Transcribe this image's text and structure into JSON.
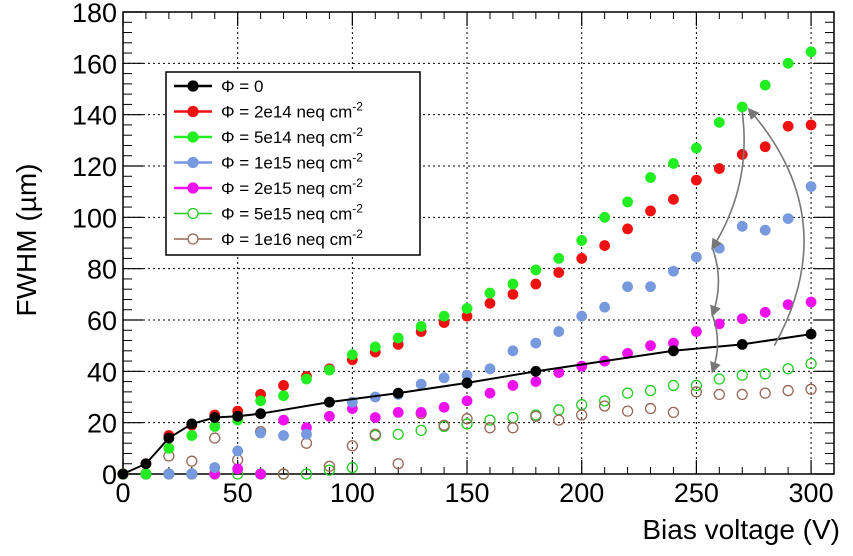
{
  "chart_data": {
    "type": "scatter",
    "title": "",
    "xlabel": "Bias voltage (V)",
    "ylabel": "FWHM (µm)",
    "xlim": [
      0,
      310
    ],
    "ylim": [
      0,
      180
    ],
    "x_ticks": [
      "0",
      "50",
      "100",
      "150",
      "200",
      "250",
      "300"
    ],
    "y_ticks": [
      "0",
      "20",
      "40",
      "60",
      "80",
      "100",
      "120",
      "140",
      "160",
      "180"
    ],
    "grid": true,
    "legend_position": "top-left",
    "series": [
      {
        "name": "Φ = 0",
        "color": "#000000",
        "marker": "filled-circle",
        "line": true,
        "points": [
          [
            0,
            0
          ],
          [
            10,
            4
          ],
          [
            20,
            14
          ],
          [
            30,
            19.5
          ],
          [
            40,
            22
          ],
          [
            50,
            22.5
          ],
          [
            60,
            23.5
          ],
          [
            90,
            28
          ],
          [
            120,
            31.5
          ],
          [
            150,
            35.5
          ],
          [
            180,
            40
          ],
          [
            240,
            48
          ],
          [
            270,
            50.5
          ],
          [
            300,
            54.5
          ]
        ]
      },
      {
        "name": "Φ = 2e14 neq cm",
        "color": "#ee1111",
        "marker": "filled-circle",
        "line": false,
        "points": [
          [
            0,
            0
          ],
          [
            10,
            4
          ],
          [
            20,
            15
          ],
          [
            30,
            19
          ],
          [
            40,
            23
          ],
          [
            50,
            24.5
          ],
          [
            60,
            31
          ],
          [
            70,
            34.5
          ],
          [
            80,
            38
          ],
          [
            90,
            41
          ],
          [
            100,
            44.5
          ],
          [
            110,
            47.5
          ],
          [
            120,
            50.5
          ],
          [
            130,
            55.5
          ],
          [
            140,
            59
          ],
          [
            150,
            61.5
          ],
          [
            160,
            66.5
          ],
          [
            170,
            70
          ],
          [
            180,
            74
          ],
          [
            190,
            78.5
          ],
          [
            200,
            84
          ],
          [
            210,
            89
          ],
          [
            220,
            95.5
          ],
          [
            230,
            102.5
          ],
          [
            240,
            107
          ],
          [
            250,
            114.5
          ],
          [
            260,
            119
          ],
          [
            270,
            124.5
          ],
          [
            280,
            127.5
          ],
          [
            290,
            135.5
          ],
          [
            300,
            136
          ]
        ]
      },
      {
        "name": "Φ = 5e14 neq cm",
        "color": "#22ee22",
        "marker": "filled-circle",
        "line": false,
        "points": [
          [
            0,
            0
          ],
          [
            10,
            0
          ],
          [
            20,
            10
          ],
          [
            30,
            15
          ],
          [
            40,
            18.5
          ],
          [
            50,
            21
          ],
          [
            60,
            28.5
          ],
          [
            70,
            30.5
          ],
          [
            80,
            37
          ],
          [
            90,
            40.5
          ],
          [
            100,
            46.5
          ],
          [
            110,
            49.5
          ],
          [
            120,
            53
          ],
          [
            130,
            57.5
          ],
          [
            140,
            61.5
          ],
          [
            150,
            64.5
          ],
          [
            160,
            70.5
          ],
          [
            170,
            74
          ],
          [
            180,
            79.5
          ],
          [
            190,
            84
          ],
          [
            200,
            91
          ],
          [
            210,
            100
          ],
          [
            220,
            106
          ],
          [
            230,
            115.5
          ],
          [
            240,
            121
          ],
          [
            250,
            127
          ],
          [
            260,
            137
          ],
          [
            270,
            143
          ],
          [
            280,
            151.5
          ],
          [
            290,
            160
          ],
          [
            300,
            164.5
          ]
        ]
      },
      {
        "name": "Φ = 1e15 neq cm",
        "color": "#7799dd",
        "marker": "filled-circle",
        "line": false,
        "points": [
          [
            0,
            0
          ],
          [
            10,
            0
          ],
          [
            20,
            0
          ],
          [
            30,
            0
          ],
          [
            40,
            2.5
          ],
          [
            50,
            9
          ],
          [
            60,
            16
          ],
          [
            70,
            15
          ],
          [
            80,
            15.5
          ],
          [
            90,
            28
          ],
          [
            100,
            28
          ],
          [
            110,
            30
          ],
          [
            120,
            31
          ],
          [
            130,
            35
          ],
          [
            140,
            37.5
          ],
          [
            150,
            38.5
          ],
          [
            160,
            41
          ],
          [
            170,
            48
          ],
          [
            180,
            51
          ],
          [
            190,
            55.5
          ],
          [
            200,
            61.5
          ],
          [
            210,
            65
          ],
          [
            220,
            73
          ],
          [
            230,
            73
          ],
          [
            240,
            79
          ],
          [
            250,
            84.5
          ],
          [
            260,
            88
          ],
          [
            270,
            96.5
          ],
          [
            280,
            95
          ],
          [
            290,
            99.5
          ],
          [
            300,
            112
          ]
        ]
      },
      {
        "name": "Φ = 2e15 neq cm",
        "color": "#ee11ee",
        "marker": "filled-circle",
        "line": false,
        "points": [
          [
            0,
            0
          ],
          [
            10,
            0
          ],
          [
            20,
            0
          ],
          [
            30,
            0
          ],
          [
            40,
            0
          ],
          [
            50,
            2
          ],
          [
            60,
            0
          ],
          [
            70,
            21
          ],
          [
            80,
            18
          ],
          [
            90,
            22.5
          ],
          [
            100,
            25.5
          ],
          [
            110,
            22
          ],
          [
            120,
            24
          ],
          [
            130,
            24
          ],
          [
            140,
            26
          ],
          [
            150,
            28.5
          ],
          [
            160,
            31.5
          ],
          [
            170,
            34.5
          ],
          [
            180,
            36
          ],
          [
            190,
            39.5
          ],
          [
            200,
            42
          ],
          [
            210,
            44
          ],
          [
            220,
            47
          ],
          [
            230,
            50
          ],
          [
            240,
            51
          ],
          [
            250,
            55.5
          ],
          [
            260,
            58.5
          ],
          [
            270,
            60.5
          ],
          [
            280,
            63
          ],
          [
            290,
            66
          ],
          [
            300,
            67
          ]
        ]
      },
      {
        "name": "Φ = 5e15 neq cm",
        "color": "#22cc22",
        "marker": "open-circle",
        "line": false,
        "points": [
          [
            0,
            0
          ],
          [
            10,
            0
          ],
          [
            20,
            0
          ],
          [
            30,
            0
          ],
          [
            40,
            0
          ],
          [
            50,
            0
          ],
          [
            60,
            0
          ],
          [
            70,
            0
          ],
          [
            80,
            0
          ],
          [
            90,
            1.5
          ],
          [
            100,
            2.5
          ],
          [
            110,
            15
          ],
          [
            120,
            15.5
          ],
          [
            130,
            17
          ],
          [
            140,
            18.5
          ],
          [
            150,
            19.5
          ],
          [
            160,
            21
          ],
          [
            170,
            22
          ],
          [
            180,
            23
          ],
          [
            190,
            25
          ],
          [
            200,
            27
          ],
          [
            210,
            28.5
          ],
          [
            220,
            31.5
          ],
          [
            230,
            32.5
          ],
          [
            240,
            34.5
          ],
          [
            250,
            34.5
          ],
          [
            260,
            37
          ],
          [
            270,
            38.5
          ],
          [
            280,
            39
          ],
          [
            290,
            41
          ],
          [
            300,
            43
          ]
        ]
      },
      {
        "name": "Φ = 1e16 neq cm",
        "color": "#996655",
        "marker": "open-circle",
        "line": false,
        "points": [
          [
            0,
            0
          ],
          [
            10,
            0
          ],
          [
            20,
            7
          ],
          [
            30,
            5
          ],
          [
            40,
            14
          ],
          [
            50,
            5.5
          ],
          [
            60,
            16.5
          ],
          [
            70,
            0
          ],
          [
            80,
            12
          ],
          [
            90,
            3
          ],
          [
            100,
            11
          ],
          [
            110,
            15.5
          ],
          [
            120,
            4
          ],
          [
            130,
            23.5
          ],
          [
            140,
            19
          ],
          [
            150,
            21.5
          ],
          [
            160,
            18
          ],
          [
            170,
            18
          ],
          [
            180,
            22.5
          ],
          [
            190,
            21
          ],
          [
            200,
            23
          ],
          [
            210,
            26.5
          ],
          [
            220,
            24.5
          ],
          [
            230,
            25.5
          ],
          [
            240,
            24
          ],
          [
            250,
            32
          ],
          [
            260,
            31
          ],
          [
            270,
            31
          ],
          [
            280,
            31.5
          ],
          [
            290,
            32.5
          ],
          [
            300,
            33
          ]
        ]
      }
    ],
    "legend_superscript": "-2",
    "annotations": [
      {
        "type": "curved-arrow",
        "color": "#777777",
        "from": [
          270,
          141
        ],
        "to": [
          257,
          88
        ]
      },
      {
        "type": "curved-arrow",
        "color": "#777777",
        "from": [
          257,
          88
        ],
        "to": [
          257,
          62
        ]
      },
      {
        "type": "curved-arrow",
        "color": "#777777",
        "from": [
          257,
          62
        ],
        "to": [
          257,
          40
        ]
      },
      {
        "type": "curved-arrow",
        "color": "#777777",
        "from": [
          284,
          50
        ],
        "to": [
          273,
          142
        ]
      }
    ]
  }
}
